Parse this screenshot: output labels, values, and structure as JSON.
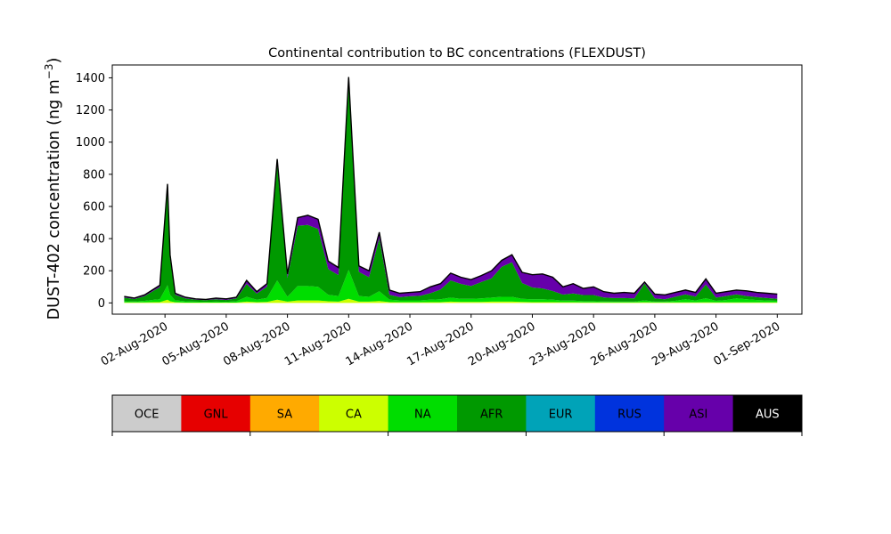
{
  "chart_data": {
    "type": "area",
    "stacked": true,
    "title": "Continental contribution to BC concentrations (FLEXDUST)",
    "ylabel": "DUST-402 concentration (ng m",
    "ylabel_sup": "−3",
    "ylabel_close": ")",
    "xlabel": "",
    "ylim": [
      -70,
      1480
    ],
    "yticks": [
      0,
      200,
      400,
      600,
      800,
      1000,
      1200,
      1400
    ],
    "xlim": [
      "2020-07-30T10:00",
      "2020-09-02T05:00"
    ],
    "xticks": [
      "2020-08-02",
      "2020-08-05",
      "2020-08-08",
      "2020-08-11",
      "2020-08-14",
      "2020-08-17",
      "2020-08-20",
      "2020-08-23",
      "2020-08-26",
      "2020-08-29",
      "2020-09-01"
    ],
    "xtick_labels": [
      "02-Aug-2020",
      "05-Aug-2020",
      "08-Aug-2020",
      "11-Aug-2020",
      "14-Aug-2020",
      "17-Aug-2020",
      "20-Aug-2020",
      "23-Aug-2020",
      "26-Aug-2020",
      "29-Aug-2020",
      "01-Sep-2020"
    ],
    "grid": false,
    "legend": {
      "position": "below",
      "entries": [
        {
          "label": "OCE",
          "color": "#cccccc"
        },
        {
          "label": "GNL",
          "color": "#e60000"
        },
        {
          "label": "SA",
          "color": "#ffaa00"
        },
        {
          "label": "CA",
          "color": "#ccff00"
        },
        {
          "label": "NA",
          "color": "#00dd00"
        },
        {
          "label": "AFR",
          "color": "#009900"
        },
        {
          "label": "EUR",
          "color": "#00a3b8"
        },
        {
          "label": "RUS",
          "color": "#0033dd"
        },
        {
          "label": "ASI",
          "color": "#6600aa"
        },
        {
          "label": "AUS",
          "color": "#000000"
        }
      ]
    },
    "series_colors": {
      "CA": "#ccff00",
      "NA": "#00dd00",
      "AFR": "#009900",
      "ASI": "#6600aa"
    },
    "x": [
      "2020-07-31T00:00",
      "2020-07-31T12:00",
      "2020-08-01T00:00",
      "2020-08-01T12:00",
      "2020-08-01T18:00",
      "2020-08-02T03:00",
      "2020-08-02T06:00",
      "2020-08-02T12:00",
      "2020-08-03T00:00",
      "2020-08-03T12:00",
      "2020-08-04T00:00",
      "2020-08-04T12:00",
      "2020-08-05T00:00",
      "2020-08-05T12:00",
      "2020-08-06T00:00",
      "2020-08-06T12:00",
      "2020-08-07T00:00",
      "2020-08-07T12:00",
      "2020-08-08T00:00",
      "2020-08-08T12:00",
      "2020-08-09T00:00",
      "2020-08-09T12:00",
      "2020-08-10T00:00",
      "2020-08-10T12:00",
      "2020-08-11T00:00",
      "2020-08-11T12:00",
      "2020-08-12T00:00",
      "2020-08-12T12:00",
      "2020-08-13T00:00",
      "2020-08-13T12:00",
      "2020-08-14T00:00",
      "2020-08-14T12:00",
      "2020-08-15T00:00",
      "2020-08-15T12:00",
      "2020-08-16T00:00",
      "2020-08-16T12:00",
      "2020-08-17T00:00",
      "2020-08-17T12:00",
      "2020-08-18T00:00",
      "2020-08-18T12:00",
      "2020-08-19T00:00",
      "2020-08-19T12:00",
      "2020-08-20T00:00",
      "2020-08-20T12:00",
      "2020-08-21T00:00",
      "2020-08-21T12:00",
      "2020-08-22T00:00",
      "2020-08-22T12:00",
      "2020-08-23T00:00",
      "2020-08-23T12:00",
      "2020-08-24T00:00",
      "2020-08-24T12:00",
      "2020-08-25T00:00",
      "2020-08-25T12:00",
      "2020-08-26T00:00",
      "2020-08-26T12:00",
      "2020-08-27T00:00",
      "2020-08-27T12:00",
      "2020-08-28T00:00",
      "2020-08-28T12:00",
      "2020-08-29T00:00",
      "2020-08-29T12:00",
      "2020-08-30T00:00",
      "2020-08-30T12:00",
      "2020-08-31T00:00",
      "2020-08-31T12:00",
      "2020-09-01T00:00"
    ],
    "total": [
      40,
      30,
      50,
      90,
      110,
      740,
      300,
      60,
      35,
      25,
      22,
      30,
      25,
      35,
      140,
      70,
      120,
      895,
      180,
      530,
      545,
      520,
      260,
      220,
      1405,
      230,
      200,
      440,
      80,
      60,
      65,
      70,
      100,
      120,
      185,
      160,
      145,
      170,
      200,
      265,
      300,
      190,
      175,
      180,
      160,
      100,
      120,
      90,
      100,
      70,
      60,
      65,
      60,
      130,
      55,
      50,
      65,
      80,
      65,
      150,
      60,
      70,
      80,
      75,
      65,
      60,
      55
    ],
    "series": [
      {
        "name": "CA",
        "values": [
          3,
          3,
          3,
          5,
          5,
          20,
          10,
          4,
          2,
          2,
          2,
          2,
          2,
          2,
          8,
          5,
          6,
          20,
          8,
          15,
          15,
          15,
          10,
          8,
          25,
          8,
          8,
          12,
          5,
          4,
          4,
          4,
          5,
          5,
          8,
          6,
          6,
          6,
          8,
          8,
          8,
          6,
          5,
          5,
          5,
          4,
          4,
          3,
          3,
          3,
          3,
          3,
          3,
          4,
          3,
          3,
          3,
          3,
          3,
          4,
          3,
          3,
          3,
          3,
          3,
          3,
          3
        ]
      },
      {
        "name": "NA",
        "values": [
          8,
          6,
          10,
          15,
          18,
          90,
          40,
          12,
          8,
          6,
          5,
          6,
          5,
          8,
          30,
          15,
          25,
          120,
          30,
          90,
          90,
          85,
          40,
          35,
          180,
          35,
          30,
          60,
          15,
          12,
          12,
          12,
          15,
          18,
          25,
          20,
          20,
          22,
          25,
          30,
          30,
          20,
          18,
          18,
          15,
          10,
          10,
          8,
          8,
          6,
          5,
          5,
          5,
          12,
          5,
          5,
          10,
          20,
          12,
          25,
          10,
          15,
          25,
          20,
          15,
          12,
          10
        ]
      },
      {
        "name": "AFR",
        "values": [
          22,
          15,
          29,
          60,
          75,
          590,
          225,
          35,
          18,
          12,
          10,
          15,
          11,
          18,
          80,
          38,
          70,
          720,
          117,
          375,
          380,
          360,
          160,
          130,
          1150,
          150,
          122,
          330,
          30,
          20,
          25,
          28,
          40,
          60,
          107,
          92,
          79,
          102,
          120,
          187,
          215,
          98,
          73,
          67,
          54,
          38,
          45,
          38,
          38,
          25,
          22,
          22,
          20,
          105,
          20,
          15,
          25,
          30,
          24,
          85,
          20,
          25,
          25,
          20,
          18,
          15,
          12
        ]
      },
      {
        "name": "ASI",
        "values": [
          7,
          6,
          8,
          10,
          12,
          40,
          25,
          9,
          7,
          5,
          5,
          7,
          7,
          7,
          22,
          12,
          19,
          35,
          25,
          50,
          60,
          60,
          50,
          47,
          50,
          37,
          40,
          38,
          30,
          24,
          24,
          26,
          40,
          37,
          45,
          42,
          40,
          40,
          47,
          40,
          47,
          66,
          79,
          90,
          86,
          48,
          61,
          41,
          51,
          36,
          30,
          35,
          32,
          9,
          27,
          27,
          27,
          27,
          26,
          36,
          27,
          27,
          27,
          32,
          29,
          30,
          30
        ]
      }
    ]
  }
}
